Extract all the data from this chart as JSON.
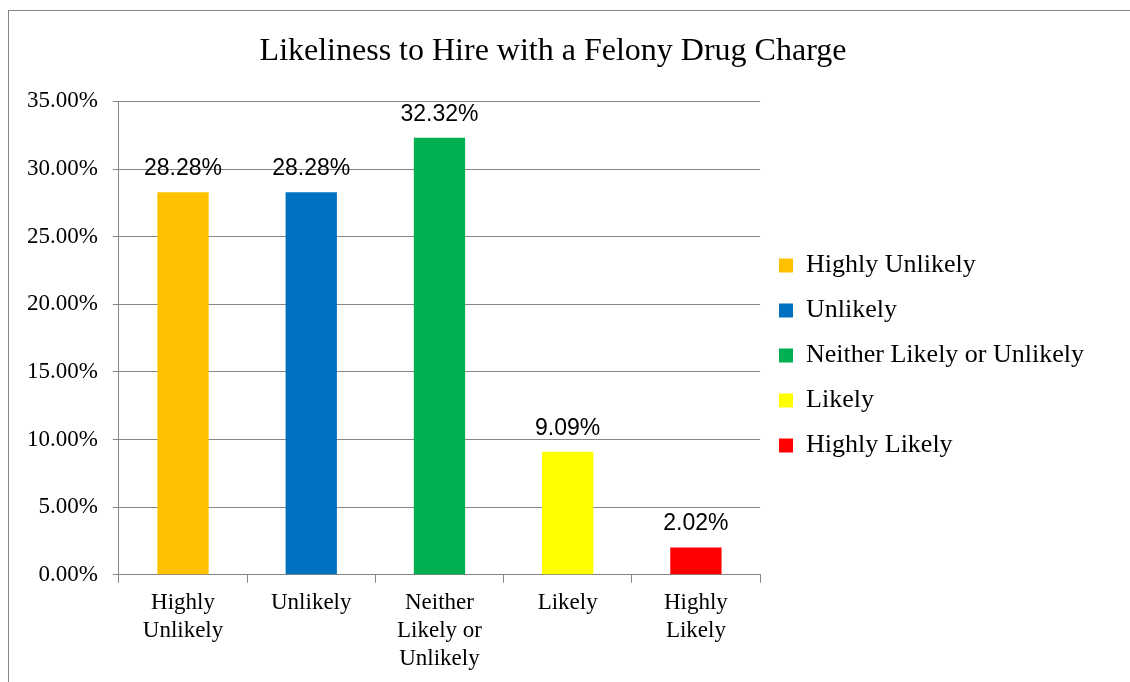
{
  "chart_data": {
    "type": "bar",
    "title": "Likeliness to Hire with a Felony Drug Charge",
    "categories": [
      "Highly Unlikely",
      "Unlikely",
      "Neither Likely or Unlikely",
      "Likely",
      "Highly Likely"
    ],
    "series": [
      {
        "name": "Highly Unlikely",
        "color": "#ffc000",
        "values": [
          28.28,
          null,
          null,
          null,
          null
        ],
        "value_labels": [
          "28.28%",
          null,
          null,
          null,
          null
        ]
      },
      {
        "name": "Unlikely",
        "color": "#0070c0",
        "values": [
          null,
          28.28,
          null,
          null,
          null
        ],
        "value_labels": [
          null,
          "28.28%",
          null,
          null,
          null
        ]
      },
      {
        "name": "Neither Likely or Unlikely",
        "color": "#00b050",
        "values": [
          null,
          null,
          32.32,
          null,
          null
        ],
        "value_labels": [
          null,
          null,
          "32.32%",
          null,
          null
        ]
      },
      {
        "name": "Likely",
        "color": "#ffff00",
        "values": [
          null,
          null,
          null,
          9.09,
          null
        ],
        "value_labels": [
          null,
          null,
          null,
          "9.09%",
          null
        ]
      },
      {
        "name": "Highly Likely",
        "color": "#ff0000",
        "values": [
          null,
          null,
          null,
          null,
          2.02
        ],
        "value_labels": [
          null,
          null,
          null,
          null,
          "2.02%"
        ]
      }
    ],
    "ylim": [
      0,
      35
    ],
    "yticks": [
      {
        "value": 0,
        "label": "0.00%"
      },
      {
        "value": 5,
        "label": "5.00%"
      },
      {
        "value": 10,
        "label": "10.00%"
      },
      {
        "value": 15,
        "label": "15.00%"
      },
      {
        "value": 20,
        "label": "20.00%"
      },
      {
        "value": 25,
        "label": "25.00%"
      },
      {
        "value": 30,
        "label": "30.00%"
      },
      {
        "value": 35,
        "label": "35.00%"
      }
    ],
    "grid": "y",
    "legend": "right"
  }
}
